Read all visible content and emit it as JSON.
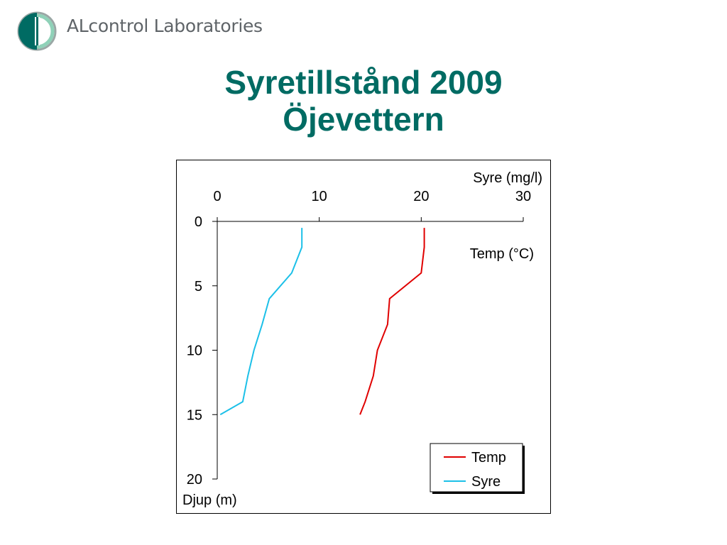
{
  "brand": {
    "name": "ALcontrol Laboratories"
  },
  "header": {
    "title_line1": "Syretillstånd 2009",
    "title_line2": "Öjevettern"
  },
  "colors": {
    "title": "#006b63",
    "brand_green": "#006b63",
    "temp": "#e00000",
    "syre": "#1cc0e8"
  },
  "chart_data": {
    "type": "line",
    "title": "",
    "x_axis": {
      "position": "top",
      "label_top": "Syre (mg/l)",
      "label_second": "Temp (°C)",
      "range": [
        0,
        30
      ],
      "ticks": [
        0,
        10,
        20,
        30
      ]
    },
    "y_axis": {
      "label": "Djup (m)",
      "range": [
        0,
        20
      ],
      "inverted": true,
      "ticks": [
        0,
        5,
        10,
        15,
        20
      ]
    },
    "grid": false,
    "legend": {
      "placement": "bottom-right",
      "entries": [
        "Temp",
        "Syre"
      ]
    },
    "series": [
      {
        "name": "Temp",
        "color": "#e00000",
        "points": [
          [
            20.3,
            0.5
          ],
          [
            20.3,
            2
          ],
          [
            20.0,
            4
          ],
          [
            16.9,
            6
          ],
          [
            16.7,
            8
          ],
          [
            15.7,
            10
          ],
          [
            15.3,
            12
          ],
          [
            14.5,
            14
          ],
          [
            14.0,
            15
          ]
        ]
      },
      {
        "name": "Syre",
        "color": "#1cc0e8",
        "points": [
          [
            8.3,
            0.5
          ],
          [
            8.3,
            2
          ],
          [
            7.3,
            4
          ],
          [
            5.1,
            6
          ],
          [
            4.4,
            8
          ],
          [
            3.6,
            10
          ],
          [
            3.0,
            12
          ],
          [
            2.5,
            14
          ],
          [
            0.3,
            15
          ]
        ]
      }
    ]
  }
}
